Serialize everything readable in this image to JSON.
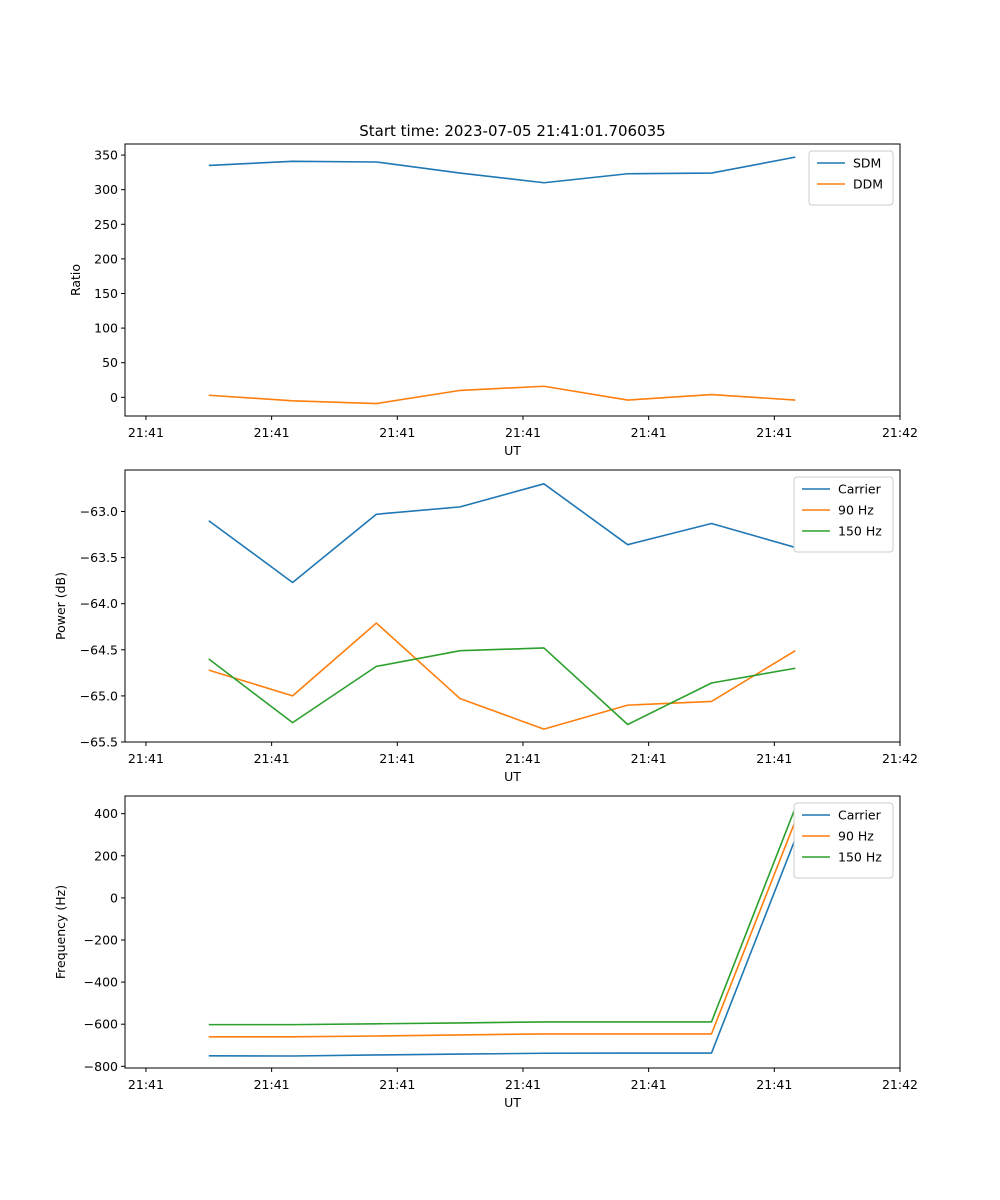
{
  "title": "Start time: 2023-07-05 21:41:01.706035",
  "colors": {
    "blue": "#1f77b4",
    "orange": "#ff7f0e",
    "green": "#2ca02c"
  },
  "chart_data": [
    {
      "type": "line",
      "title": "Start time: 2023-07-05 21:41:01.706035",
      "xlabel": "UT",
      "ylabel": "Ratio",
      "xlim": [
        -0.5,
        8.75
      ],
      "ylim": [
        -27,
        366
      ],
      "yticks": [
        0,
        50,
        100,
        150,
        200,
        250,
        300,
        350
      ],
      "xticks": [
        -0.25,
        1.25,
        2.75,
        4.25,
        5.75,
        7.25,
        8.75
      ],
      "xtick_labels": [
        "21:41",
        "21:41",
        "21:41",
        "21:41",
        "21:41",
        "21:41",
        "21:42"
      ],
      "x": [
        0.5,
        1.5,
        2.5,
        3.5,
        4.5,
        5.5,
        6.5,
        7.5
      ],
      "legend": "top-right",
      "grid": false,
      "series": [
        {
          "name": "SDM",
          "color": "#1f77b4",
          "values": [
            335,
            341,
            340,
            324,
            310,
            323,
            324,
            347
          ]
        },
        {
          "name": "DDM",
          "color": "#ff7f0e",
          "values": [
            3,
            -5,
            -9,
            10,
            16,
            -4,
            4,
            -4
          ]
        }
      ]
    },
    {
      "type": "line",
      "title": "",
      "xlabel": "UT",
      "ylabel": "Power (dB)",
      "xlim": [
        -0.5,
        8.75
      ],
      "ylim": [
        -65.5,
        -62.55
      ],
      "yticks": [
        -65.5,
        -65.0,
        -64.5,
        -64.0,
        -63.5,
        -63.0
      ],
      "ytick_labels": [
        "−65.5",
        "−65.0",
        "−64.5",
        "−64.0",
        "−63.5",
        "−63.0"
      ],
      "xticks": [
        -0.25,
        1.25,
        2.75,
        4.25,
        5.75,
        7.25,
        8.75
      ],
      "xtick_labels": [
        "21:41",
        "21:41",
        "21:41",
        "21:41",
        "21:41",
        "21:41",
        "21:42"
      ],
      "x": [
        0.5,
        1.5,
        2.5,
        3.5,
        4.5,
        5.5,
        6.5,
        7.5
      ],
      "legend": "top-right",
      "grid": false,
      "series": [
        {
          "name": "Carrier",
          "color": "#1f77b4",
          "values": [
            -63.1,
            -63.77,
            -63.03,
            -62.95,
            -62.7,
            -63.36,
            -63.13,
            -63.39
          ]
        },
        {
          "name": "90 Hz",
          "color": "#ff7f0e",
          "values": [
            -64.72,
            -65.0,
            -64.21,
            -65.03,
            -65.36,
            -65.1,
            -65.06,
            -64.51
          ]
        },
        {
          "name": "150 Hz",
          "color": "#2ca02c",
          "values": [
            -64.6,
            -65.29,
            -64.68,
            -64.51,
            -64.48,
            -65.31,
            -64.86,
            -64.7
          ]
        }
      ]
    },
    {
      "type": "line",
      "title": "",
      "xlabel": "UT",
      "ylabel": "Frequency (Hz)",
      "xlim": [
        -0.5,
        8.75
      ],
      "ylim": [
        -808,
        484
      ],
      "yticks": [
        -800,
        -600,
        -400,
        -200,
        0,
        200,
        400
      ],
      "ytick_labels": [
        "−800",
        "−600",
        "−400",
        "−200",
        "0",
        "200",
        "400"
      ],
      "xticks": [
        -0.25,
        1.25,
        2.75,
        4.25,
        5.75,
        7.25,
        8.75
      ],
      "xtick_labels": [
        "21:41",
        "21:41",
        "21:41",
        "21:41",
        "21:41",
        "21:41",
        "21:42"
      ],
      "x": [
        0.5,
        1.5,
        2.5,
        3.5,
        4.5,
        5.5,
        6.5,
        7.5
      ],
      "legend": "top-right",
      "grid": false,
      "series": [
        {
          "name": "Carrier",
          "color": "#1f77b4",
          "values": [
            -750,
            -751,
            -746,
            -742,
            -738,
            -737,
            -737,
            280
          ]
        },
        {
          "name": "90 Hz",
          "color": "#ff7f0e",
          "values": [
            -660,
            -660,
            -656,
            -651,
            -646,
            -646,
            -646,
            365
          ]
        },
        {
          "name": "150 Hz",
          "color": "#2ca02c",
          "values": [
            -602,
            -602,
            -598,
            -594,
            -589,
            -589,
            -589,
            428
          ]
        }
      ]
    }
  ]
}
